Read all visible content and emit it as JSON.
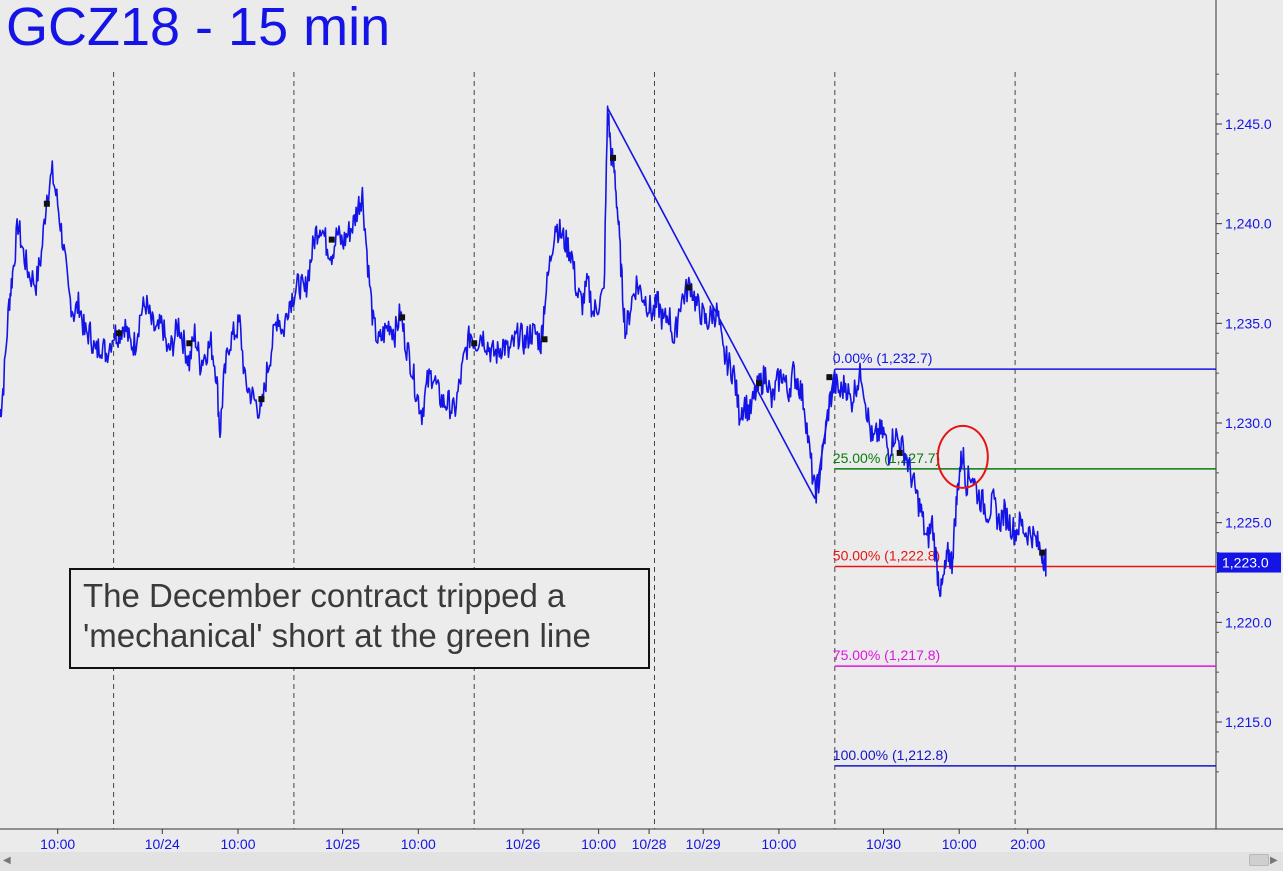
{
  "chart_data": {
    "type": "line",
    "title": "GCZ18 - 15 min",
    "y_range": [
      1210.0,
      1250.0
    ],
    "y_ticks": [
      "1,245.0",
      "1,240.0",
      "1,235.0",
      "1,230.0",
      "1,225.0",
      "1,220.0",
      "1,215.0"
    ],
    "y_tick_values": [
      1245,
      1240,
      1235,
      1230,
      1225,
      1220,
      1215
    ],
    "x_ticks": [
      "10:00",
      "10/24",
      "10:00",
      "10/25",
      "10:00",
      "10/26",
      "10:00",
      "10/28",
      "10/29",
      "10:00",
      "10/30",
      "10:00",
      "20:00"
    ],
    "x_tick_index": [
      3.2,
      9.0,
      13.2,
      19.0,
      23.2,
      29.0,
      33.2,
      36.0,
      39.0,
      43.2,
      49.0,
      53.2,
      57.0
    ],
    "session_breaks": [
      6.3,
      16.3,
      26.3,
      36.3,
      46.3,
      56.3
    ],
    "x_range": [
      0,
      66
    ],
    "last_price_label": "1,223.0",
    "last_price": 1223.0,
    "series": [
      {
        "color": "#1414e6",
        "points": [
          [
            0.0,
            1230.3
          ],
          [
            0.2,
            1232.0
          ],
          [
            0.5,
            1236.0
          ],
          [
            0.7,
            1237.5
          ],
          [
            1.0,
            1240.0
          ],
          [
            1.3,
            1238.5
          ],
          [
            1.6,
            1237.5
          ],
          [
            2.0,
            1237.0
          ],
          [
            2.3,
            1238.5
          ],
          [
            2.6,
            1241.5
          ],
          [
            2.9,
            1242.5
          ],
          [
            3.2,
            1241.0
          ],
          [
            3.5,
            1239.0
          ],
          [
            3.8,
            1236.5
          ],
          [
            4.1,
            1235.5
          ],
          [
            4.4,
            1236.0
          ],
          [
            4.7,
            1234.5
          ],
          [
            5.0,
            1234.5
          ],
          [
            5.3,
            1233.5
          ],
          [
            5.6,
            1234.0
          ],
          [
            5.9,
            1233.5
          ],
          [
            6.3,
            1234.5
          ],
          [
            6.6,
            1234.5
          ],
          [
            6.9,
            1235.0
          ],
          [
            7.2,
            1234.0
          ],
          [
            7.5,
            1234.0
          ],
          [
            7.8,
            1235.5
          ],
          [
            8.1,
            1236.0
          ],
          [
            8.4,
            1235.0
          ],
          [
            8.7,
            1234.5
          ],
          [
            9.0,
            1235.0
          ],
          [
            9.3,
            1233.5
          ],
          [
            9.6,
            1234.0
          ],
          [
            9.9,
            1235.0
          ],
          [
            10.2,
            1234.0
          ],
          [
            10.5,
            1233.0
          ],
          [
            10.8,
            1234.5
          ],
          [
            11.1,
            1233.0
          ],
          [
            11.4,
            1233.5
          ],
          [
            11.7,
            1234.0
          ],
          [
            12.0,
            1232.5
          ],
          [
            12.2,
            1229.5
          ],
          [
            12.4,
            1232.0
          ],
          [
            12.7,
            1234.0
          ],
          [
            13.0,
            1234.5
          ],
          [
            13.3,
            1235.0
          ],
          [
            13.6,
            1232.0
          ],
          [
            13.9,
            1231.5
          ],
          [
            14.2,
            1231.0
          ],
          [
            14.5,
            1230.5
          ],
          [
            14.8,
            1232.5
          ],
          [
            15.1,
            1234.0
          ],
          [
            15.4,
            1235.5
          ],
          [
            15.7,
            1234.5
          ],
          [
            16.0,
            1236.0
          ],
          [
            16.3,
            1236.5
          ],
          [
            16.6,
            1237.0
          ],
          [
            16.9,
            1236.5
          ],
          [
            17.2,
            1238.0
          ],
          [
            17.5,
            1239.5
          ],
          [
            17.8,
            1240.0
          ],
          [
            18.1,
            1239.0
          ],
          [
            18.4,
            1238.5
          ],
          [
            18.7,
            1239.5
          ],
          [
            19.0,
            1239.0
          ],
          [
            19.3,
            1239.5
          ],
          [
            19.6,
            1240.0
          ],
          [
            19.9,
            1241.0
          ],
          [
            20.1,
            1241.5
          ],
          [
            20.4,
            1238.0
          ],
          [
            20.7,
            1235.0
          ],
          [
            21.0,
            1234.0
          ],
          [
            21.3,
            1234.5
          ],
          [
            21.6,
            1235.0
          ],
          [
            21.9,
            1234.5
          ],
          [
            22.2,
            1235.5
          ],
          [
            22.5,
            1234.0
          ],
          [
            22.8,
            1233.0
          ],
          [
            23.1,
            1231.5
          ],
          [
            23.4,
            1230.5
          ],
          [
            23.7,
            1232.0
          ],
          [
            24.0,
            1232.5
          ],
          [
            24.3,
            1231.5
          ],
          [
            24.6,
            1231.0
          ],
          [
            24.9,
            1231.0
          ],
          [
            25.2,
            1230.5
          ],
          [
            25.5,
            1232.0
          ],
          [
            25.8,
            1233.5
          ],
          [
            26.1,
            1234.5
          ],
          [
            26.4,
            1234.0
          ],
          [
            26.7,
            1234.5
          ],
          [
            27.0,
            1234.0
          ],
          [
            27.3,
            1233.5
          ],
          [
            27.6,
            1233.5
          ],
          [
            27.9,
            1234.0
          ],
          [
            28.2,
            1233.5
          ],
          [
            28.5,
            1234.0
          ],
          [
            28.8,
            1234.5
          ],
          [
            29.1,
            1234.0
          ],
          [
            29.4,
            1234.5
          ],
          [
            29.7,
            1234.5
          ],
          [
            30.0,
            1234.0
          ],
          [
            30.2,
            1236.0
          ],
          [
            30.5,
            1238.0
          ],
          [
            30.8,
            1240.0
          ],
          [
            31.1,
            1239.5
          ],
          [
            31.4,
            1239.0
          ],
          [
            31.7,
            1238.5
          ],
          [
            32.0,
            1236.5
          ],
          [
            32.3,
            1236.0
          ],
          [
            32.6,
            1237.0
          ],
          [
            32.9,
            1235.5
          ],
          [
            33.2,
            1236.0
          ],
          [
            33.5,
            1236.5
          ],
          [
            33.7,
            1245.8
          ],
          [
            33.9,
            1243.5
          ],
          [
            34.1,
            1242.5
          ],
          [
            34.3,
            1240.0
          ],
          [
            34.5,
            1237.0
          ],
          [
            34.7,
            1234.5
          ],
          [
            35.0,
            1236.0
          ],
          [
            35.3,
            1237.0
          ],
          [
            35.6,
            1236.5
          ],
          [
            35.9,
            1236.0
          ],
          [
            36.2,
            1235.5
          ],
          [
            36.5,
            1236.0
          ],
          [
            36.8,
            1235.0
          ],
          [
            37.1,
            1235.5
          ],
          [
            37.4,
            1234.0
          ],
          [
            37.7,
            1236.0
          ],
          [
            38.0,
            1236.5
          ],
          [
            38.3,
            1237.0
          ],
          [
            38.6,
            1236.0
          ],
          [
            38.9,
            1235.5
          ],
          [
            39.2,
            1235.0
          ],
          [
            39.5,
            1235.5
          ],
          [
            39.8,
            1235.5
          ],
          [
            40.1,
            1233.5
          ],
          [
            40.4,
            1233.0
          ],
          [
            40.7,
            1232.5
          ],
          [
            41.0,
            1230.5
          ],
          [
            41.3,
            1231.0
          ],
          [
            41.6,
            1230.5
          ],
          [
            41.9,
            1231.5
          ],
          [
            42.2,
            1232.0
          ],
          [
            42.5,
            1232.5
          ],
          [
            42.8,
            1231.0
          ],
          [
            43.1,
            1232.0
          ],
          [
            43.4,
            1232.5
          ],
          [
            43.7,
            1231.5
          ],
          [
            44.0,
            1232.5
          ],
          [
            44.3,
            1232.0
          ],
          [
            44.6,
            1231.0
          ],
          [
            44.9,
            1228.5
          ],
          [
            45.2,
            1226.5
          ],
          [
            45.4,
            1227.0
          ],
          [
            45.7,
            1229.0
          ],
          [
            46.0,
            1231.0
          ],
          [
            46.3,
            1232.0
          ],
          [
            46.6,
            1231.5
          ],
          [
            46.9,
            1232.0
          ],
          [
            47.2,
            1231.0
          ],
          [
            47.5,
            1232.0
          ],
          [
            47.8,
            1232.5
          ],
          [
            48.1,
            1230.5
          ],
          [
            48.4,
            1229.0
          ],
          [
            48.7,
            1229.5
          ],
          [
            49.0,
            1229.5
          ],
          [
            49.3,
            1228.5
          ],
          [
            49.6,
            1229.5
          ],
          [
            49.9,
            1229.0
          ],
          [
            50.2,
            1228.5
          ],
          [
            50.5,
            1227.5
          ],
          [
            50.8,
            1226.5
          ],
          [
            51.1,
            1225.5
          ],
          [
            51.4,
            1224.0
          ],
          [
            51.7,
            1225.0
          ],
          [
            52.0,
            1222.5
          ],
          [
            52.2,
            1221.5
          ],
          [
            52.4,
            1222.5
          ],
          [
            52.6,
            1223.5
          ],
          [
            52.8,
            1223.0
          ],
          [
            53.0,
            1225.5
          ],
          [
            53.2,
            1227.5
          ],
          [
            53.4,
            1228.5
          ],
          [
            53.6,
            1227.0
          ],
          [
            53.9,
            1227.5
          ],
          [
            54.2,
            1226.5
          ],
          [
            54.5,
            1226.0
          ],
          [
            54.8,
            1225.5
          ],
          [
            55.1,
            1226.0
          ],
          [
            55.4,
            1225.0
          ],
          [
            55.7,
            1225.5
          ],
          [
            56.0,
            1225.0
          ],
          [
            56.3,
            1224.5
          ],
          [
            56.6,
            1225.0
          ],
          [
            56.9,
            1224.5
          ],
          [
            57.2,
            1224.5
          ],
          [
            57.5,
            1224.0
          ],
          [
            57.8,
            1223.5
          ],
          [
            58.0,
            1223.0
          ]
        ]
      }
    ],
    "swing_lines": [
      {
        "from": [
          33.7,
          1245.8
        ],
        "to": [
          45.2,
          1226.2
        ],
        "color": "#1414e6"
      },
      {
        "from": [
          45.2,
          1226.2
        ],
        "to": [
          46.3,
          1232.7
        ],
        "color": "#1414e6"
      }
    ],
    "fib_levels": [
      {
        "label": "0.00% (1,232.7)",
        "value": 1232.7,
        "color": "#1414e6"
      },
      {
        "label": "25.00% (1,227.7)",
        "value": 1227.7,
        "color": "#0a7a0a"
      },
      {
        "label": "50.00% (1,222.8)",
        "value": 1222.8,
        "color": "#e61414"
      },
      {
        "label": "75.00% (1,217.8)",
        "value": 1217.8,
        "color": "#e014e0"
      },
      {
        "label": "100.00% (1,212.8)",
        "value": 1212.8,
        "color": "#1414c8"
      }
    ],
    "fib_start_x": 46.3,
    "markers": [
      [
        2.6,
        1241.0
      ],
      [
        6.6,
        1234.5
      ],
      [
        10.5,
        1234.0
      ],
      [
        14.5,
        1231.2
      ],
      [
        18.4,
        1239.2
      ],
      [
        22.3,
        1235.3
      ],
      [
        26.3,
        1234.0
      ],
      [
        30.2,
        1234.2
      ],
      [
        34.0,
        1243.3
      ],
      [
        38.2,
        1236.8
      ],
      [
        42.1,
        1232.0
      ],
      [
        46.0,
        1232.3
      ],
      [
        49.9,
        1228.5
      ],
      [
        57.8,
        1223.5
      ]
    ],
    "highlight_circle": {
      "x": 53.4,
      "y": 1228.3,
      "color": "#e61414"
    },
    "annotation": {
      "line1": "The December contract tripped a",
      "line2": "'mechanical' short at the green line"
    }
  }
}
